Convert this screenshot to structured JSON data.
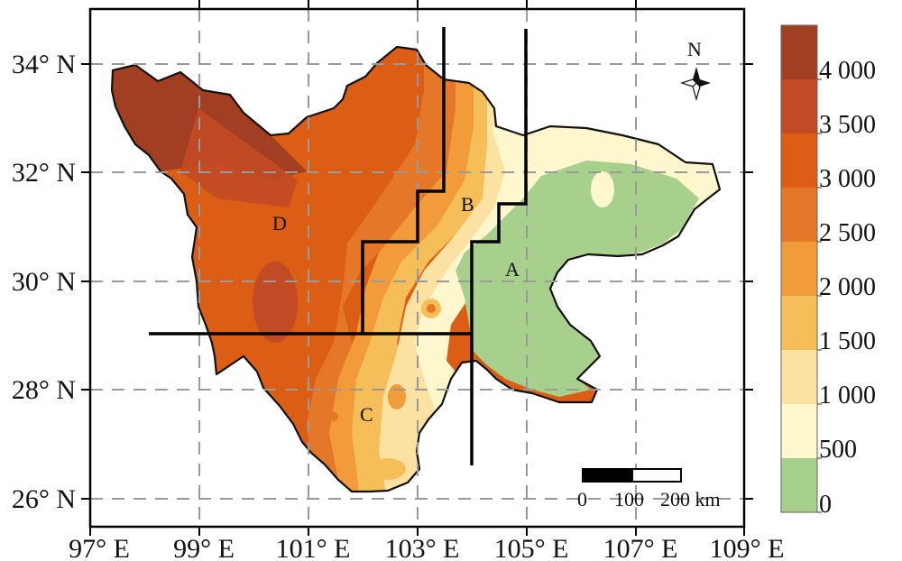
{
  "map": {
    "axes": {
      "x_ticks": [
        "97° E",
        "99° E",
        "101° E",
        "103° E",
        "105° E",
        "107° E",
        "109° E"
      ],
      "y_ticks": [
        "34° N",
        "32° N",
        "30° N",
        "28° N",
        "26° N"
      ]
    },
    "regions": [
      "A",
      "B",
      "C",
      "D"
    ],
    "north_arrow": {
      "label": "N",
      "icon": "compass-star-icon"
    },
    "scale_bar": {
      "labels": [
        "0",
        "100",
        "200 km"
      ]
    },
    "legend": {
      "labels": [
        "4 000",
        "3 500",
        "3 000",
        "2 500",
        "2 000",
        "1 500",
        "1 000",
        "500",
        "0"
      ],
      "colors": [
        "#A23F22",
        "#C24A24",
        "#DB5E14",
        "#E57828",
        "#F29B3A",
        "#F5BE58",
        "#FBE1A2",
        "#FEF7CD",
        "#A8D08D"
      ]
    },
    "outline_color": "#111111",
    "grid_style": "dashed gray"
  }
}
